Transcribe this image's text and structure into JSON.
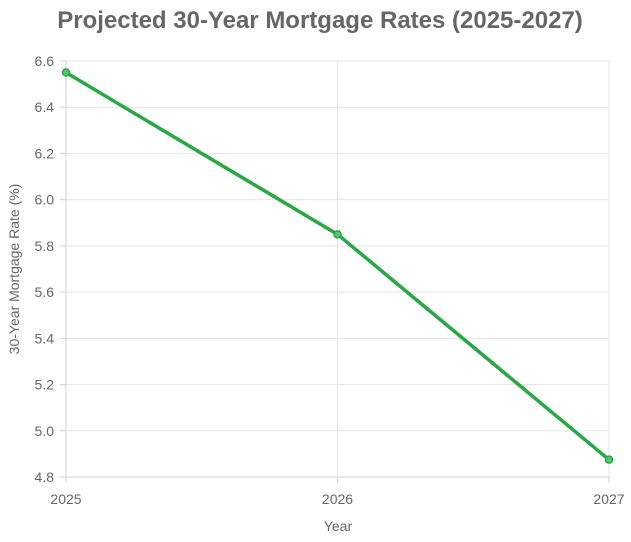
{
  "chart_data": {
    "type": "line",
    "title": "Projected 30-Year Mortgage Rates (2025-2027)",
    "xlabel": "Year",
    "ylabel": "30-Year Mortgage Rate (%)",
    "x": [
      "2025",
      "2026",
      "2027"
    ],
    "series": [
      {
        "values": [
          6.55,
          5.85,
          4.875
        ],
        "color": "#28a745"
      }
    ],
    "ylim": [
      4.8,
      6.6
    ],
    "yticks": [
      "4.8",
      "5.0",
      "5.2",
      "5.4",
      "5.6",
      "5.8",
      "6.0",
      "6.2",
      "6.4",
      "6.6"
    ],
    "grid": true,
    "legend": "none"
  }
}
